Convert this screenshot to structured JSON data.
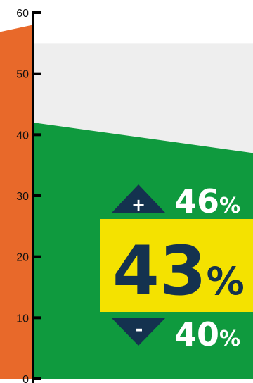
{
  "chart_data": {
    "type": "area",
    "ylim": [
      0,
      60
    ],
    "y_ticks": [
      0,
      10,
      20,
      30,
      40,
      50,
      60
    ],
    "tick_labels": [
      "0",
      "10",
      "20",
      "30",
      "40",
      "50",
      "60"
    ],
    "series": [
      {
        "color": "#0f9a3e",
        "values": [
          42,
          37
        ]
      },
      {
        "color": "#eeeeee",
        "values": [
          55,
          55
        ]
      }
    ],
    "left_segment_color": "#e8692a",
    "left_segment_top": 58,
    "grid": false,
    "estimate": {
      "value": "43",
      "unit": "%",
      "upper": "46",
      "upper_unit": "%",
      "lower": "40",
      "lower_unit": "%",
      "plus_symbol": "+",
      "minus_symbol": "-",
      "highlight_color": "#f4e200",
      "text_color": "#14324f"
    }
  }
}
